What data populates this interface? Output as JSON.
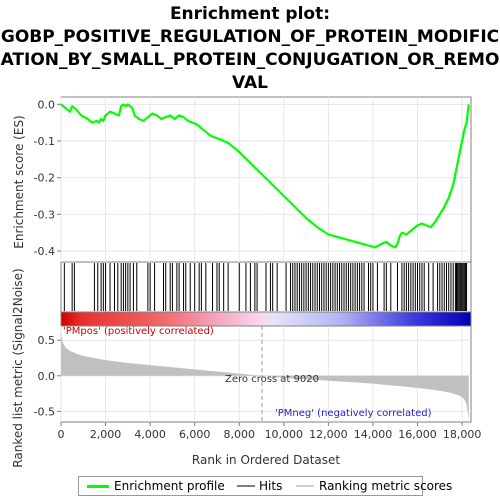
{
  "title_lines": [
    "Enrichment plot:",
    "GOBP_POSITIVE_REGULATION_OF_PROTEIN_MODIFIC",
    "ATION_BY_SMALL_PROTEIN_CONJUGATION_OR_REMO",
    "VAL"
  ],
  "chart_data": [
    {
      "type": "line",
      "panel": "enrichment-profile",
      "ylabel": "Enrichment score (ES)",
      "xlim": [
        0,
        18400
      ],
      "ylim": [
        -0.43,
        0.02
      ],
      "yticks": [
        0.0,
        -0.1,
        -0.2,
        -0.3,
        -0.4
      ],
      "ytick_labels": [
        "0.0",
        "-0.1",
        "-0.2",
        "-0.3",
        "-0.4"
      ],
      "grid": true,
      "series": [
        {
          "name": "Enrichment profile",
          "color": "#00ff00",
          "x": [
            0,
            400,
            500,
            700,
            900,
            1200,
            1400,
            1600,
            1700,
            1800,
            1900,
            2000,
            2200,
            2400,
            2600,
            2700,
            2800,
            2900,
            3000,
            3100,
            3200,
            3300,
            3500,
            3700,
            3900,
            4100,
            4300,
            4500,
            4700,
            4900,
            5100,
            5300,
            5500,
            5700,
            5900,
            6100,
            6300,
            6500,
            6700,
            6900,
            7100,
            7300,
            7500,
            8000,
            8500,
            9000,
            9500,
            10000,
            10500,
            11000,
            11500,
            12000,
            12300,
            12600,
            12900,
            13200,
            13500,
            13800,
            14100,
            14400,
            14600,
            14800,
            15000,
            15100,
            15200,
            15300,
            15500,
            15700,
            15900,
            16000,
            16200,
            16400,
            16600,
            16800,
            17000,
            17200,
            17400,
            17600,
            17700,
            17800,
            17900,
            18000,
            18100,
            18200,
            18300
          ],
          "y": [
            0.0,
            -0.02,
            -0.005,
            -0.015,
            -0.03,
            -0.04,
            -0.05,
            -0.045,
            -0.05,
            -0.04,
            -0.045,
            -0.03,
            -0.02,
            -0.025,
            -0.03,
            -0.005,
            0.0,
            -0.005,
            0.0,
            -0.005,
            -0.01,
            -0.03,
            -0.04,
            -0.045,
            -0.035,
            -0.025,
            -0.03,
            -0.04,
            -0.035,
            -0.03,
            -0.04,
            -0.03,
            -0.035,
            -0.045,
            -0.05,
            -0.055,
            -0.065,
            -0.075,
            -0.085,
            -0.09,
            -0.095,
            -0.1,
            -0.105,
            -0.13,
            -0.16,
            -0.19,
            -0.22,
            -0.25,
            -0.28,
            -0.31,
            -0.335,
            -0.355,
            -0.36,
            -0.365,
            -0.37,
            -0.375,
            -0.38,
            -0.385,
            -0.39,
            -0.38,
            -0.375,
            -0.385,
            -0.39,
            -0.38,
            -0.36,
            -0.35,
            -0.355,
            -0.345,
            -0.335,
            -0.33,
            -0.325,
            -0.33,
            -0.335,
            -0.32,
            -0.3,
            -0.28,
            -0.255,
            -0.22,
            -0.19,
            -0.16,
            -0.13,
            -0.1,
            -0.07,
            -0.05,
            0.0
          ]
        }
      ]
    },
    {
      "type": "scatter",
      "panel": "hits",
      "series": [
        {
          "name": "Hits",
          "color": "#000000",
          "x": [
            150,
            500,
            600,
            1500,
            1650,
            1800,
            1900,
            2000,
            2200,
            2400,
            2550,
            2700,
            2800,
            2900,
            3000,
            3100,
            3250,
            3400,
            3900,
            4000,
            4200,
            4600,
            4700,
            4900,
            5000,
            5200,
            5300,
            5500,
            5600,
            5800,
            6000,
            6200,
            6300,
            6500,
            6800,
            7000,
            7100,
            7300,
            7500,
            8000,
            8300,
            8500,
            8700,
            8800,
            9200,
            9400,
            9500,
            9700,
            10100,
            10300,
            10400,
            10500,
            10600,
            10700,
            10800,
            10900,
            11000,
            11100,
            11200,
            11300,
            11400,
            11500,
            11600,
            11700,
            11800,
            11900,
            12000,
            12100,
            12200,
            12300,
            12400,
            12500,
            12600,
            12700,
            12800,
            12900,
            13000,
            13100,
            13200,
            13300,
            13400,
            13500,
            13600,
            13800,
            13900,
            14000,
            14200,
            14500,
            14600,
            14800,
            15100,
            15300,
            15400,
            15500,
            15600,
            15700,
            15800,
            15900,
            16000,
            16100,
            16200,
            16300,
            16500,
            16700,
            16900,
            17000,
            17100,
            17200,
            17300,
            17400,
            17500,
            17600,
            17700,
            17750,
            17800,
            17850,
            17900,
            17950,
            18000,
            18050,
            18100,
            18150,
            18200
          ]
        }
      ]
    },
    {
      "type": "area",
      "panel": "ranked-list-metric",
      "ylabel": "Ranked list metric (Signal2Noise)",
      "xlabel": "Rank in Ordered Dataset",
      "xlim": [
        0,
        18400
      ],
      "ylim": [
        -0.65,
        0.7
      ],
      "yticks": [
        0.5,
        0.0,
        -0.5
      ],
      "ytick_labels": [
        "0.5",
        "0.0",
        "-0.5"
      ],
      "xticks": [
        0,
        2000,
        4000,
        6000,
        8000,
        10000,
        12000,
        14000,
        16000,
        18000
      ],
      "xtick_labels": [
        "0",
        "2,000",
        "4,000",
        "6,000",
        "8,000",
        "10,000",
        "12,000",
        "14,000",
        "16,000",
        "18,000"
      ],
      "grid": true,
      "zero_cross": 9020,
      "series": [
        {
          "name": "Ranking metric scores",
          "color": "#c0c0c0",
          "x": [
            0,
            50,
            100,
            200,
            400,
            700,
            1000,
            1500,
            2000,
            3000,
            4000,
            5000,
            6000,
            7000,
            8000,
            9020,
            10000,
            11000,
            12000,
            13000,
            14000,
            15000,
            16000,
            16500,
            17000,
            17500,
            17800,
            18000,
            18100,
            18200,
            18300
          ],
          "y": [
            0.65,
            0.5,
            0.45,
            0.4,
            0.35,
            0.31,
            0.28,
            0.25,
            0.22,
            0.18,
            0.15,
            0.12,
            0.09,
            0.06,
            0.03,
            0.0,
            -0.03,
            -0.05,
            -0.07,
            -0.09,
            -0.11,
            -0.14,
            -0.17,
            -0.19,
            -0.21,
            -0.24,
            -0.27,
            -0.3,
            -0.33,
            -0.4,
            -0.62
          ]
        }
      ]
    }
  ],
  "annotations": {
    "pos_label": "'PMpos' (positively correlated)",
    "neg_label": "'PMneg' (negatively correlated)",
    "zero_cross": "Zero cross at 9020"
  },
  "legend": [
    {
      "label": "Enrichment profile",
      "color": "#00ff00"
    },
    {
      "label": "Hits",
      "color": "#808080"
    },
    {
      "label": "Ranking metric scores",
      "color": "#d0d0d0"
    }
  ]
}
